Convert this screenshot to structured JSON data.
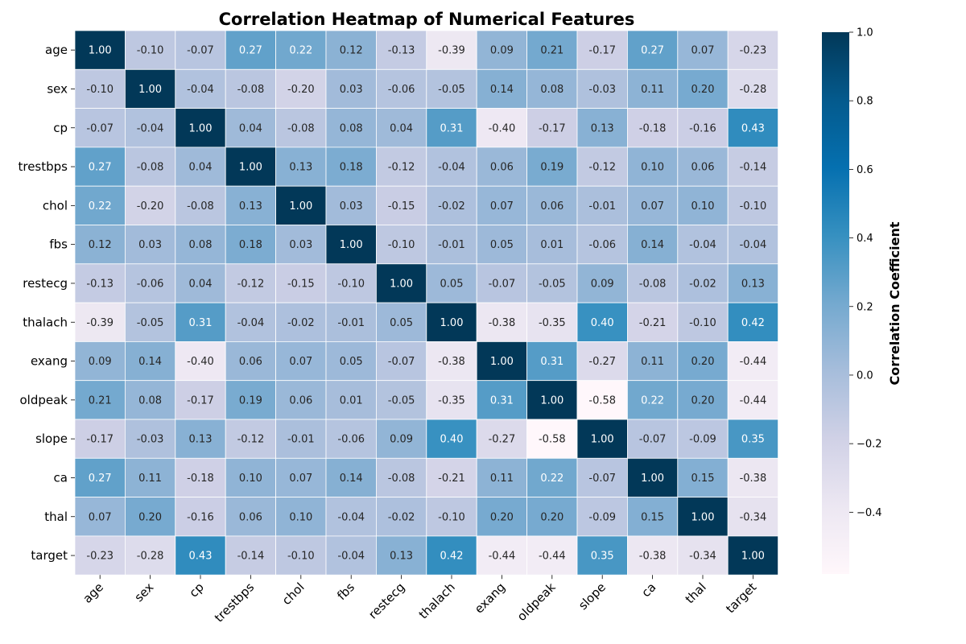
{
  "chart_data": {
    "type": "heatmap",
    "title": "Correlation Heatmap of Numerical Features",
    "row_labels": [
      "age",
      "sex",
      "cp",
      "trestbps",
      "chol",
      "fbs",
      "restecg",
      "thalach",
      "exang",
      "oldpeak",
      "slope",
      "ca",
      "thal",
      "target"
    ],
    "col_labels": [
      "age",
      "sex",
      "cp",
      "trestbps",
      "chol",
      "fbs",
      "restecg",
      "thalach",
      "exang",
      "oldpeak",
      "slope",
      "ca",
      "thal",
      "target"
    ],
    "values": [
      [
        1.0,
        -0.1,
        -0.07,
        0.27,
        0.22,
        0.12,
        -0.13,
        -0.39,
        0.09,
        0.21,
        -0.17,
        0.27,
        0.07,
        -0.23
      ],
      [
        -0.1,
        1.0,
        -0.04,
        -0.08,
        -0.2,
        0.03,
        -0.06,
        -0.05,
        0.14,
        0.08,
        -0.03,
        0.11,
        0.2,
        -0.28
      ],
      [
        -0.07,
        -0.04,
        1.0,
        0.04,
        -0.08,
        0.08,
        0.04,
        0.31,
        -0.4,
        -0.17,
        0.13,
        -0.18,
        -0.16,
        0.43
      ],
      [
        0.27,
        -0.08,
        0.04,
        1.0,
        0.13,
        0.18,
        -0.12,
        -0.04,
        0.06,
        0.19,
        -0.12,
        0.1,
        0.06,
        -0.14
      ],
      [
        0.22,
        -0.2,
        -0.08,
        0.13,
        1.0,
        0.03,
        -0.15,
        -0.02,
        0.07,
        0.06,
        -0.01,
        0.07,
        0.1,
        -0.1
      ],
      [
        0.12,
        0.03,
        0.08,
        0.18,
        0.03,
        1.0,
        -0.1,
        -0.01,
        0.05,
        0.01,
        -0.06,
        0.14,
        -0.04,
        -0.04
      ],
      [
        -0.13,
        -0.06,
        0.04,
        -0.12,
        -0.15,
        -0.1,
        1.0,
        0.05,
        -0.07,
        -0.05,
        0.09,
        -0.08,
        -0.02,
        0.13
      ],
      [
        -0.39,
        -0.05,
        0.31,
        -0.04,
        -0.02,
        -0.01,
        0.05,
        1.0,
        -0.38,
        -0.35,
        0.4,
        -0.21,
        -0.1,
        0.42
      ],
      [
        0.09,
        0.14,
        -0.4,
        0.06,
        0.07,
        0.05,
        -0.07,
        -0.38,
        1.0,
        0.31,
        -0.27,
        0.11,
        0.2,
        -0.44
      ],
      [
        0.21,
        0.08,
        -0.17,
        0.19,
        0.06,
        0.01,
        -0.05,
        -0.35,
        0.31,
        1.0,
        -0.58,
        0.22,
        0.2,
        -0.44
      ],
      [
        -0.17,
        -0.03,
        0.13,
        -0.12,
        -0.01,
        -0.06,
        0.09,
        0.4,
        -0.27,
        -0.58,
        1.0,
        -0.07,
        -0.09,
        0.35
      ],
      [
        0.27,
        0.11,
        -0.18,
        0.1,
        0.07,
        0.14,
        -0.08,
        -0.21,
        0.11,
        0.22,
        -0.07,
        1.0,
        0.15,
        -0.38
      ],
      [
        0.07,
        0.2,
        -0.16,
        0.06,
        0.1,
        -0.04,
        -0.02,
        -0.1,
        0.2,
        0.2,
        -0.09,
        0.15,
        1.0,
        -0.34
      ],
      [
        -0.23,
        -0.28,
        0.43,
        -0.14,
        -0.1,
        -0.04,
        0.13,
        0.42,
        -0.44,
        -0.44,
        0.35,
        -0.38,
        -0.34,
        1.0
      ]
    ],
    "value_format": "2 decimals",
    "colormap": "PuBu",
    "vmin": -0.58,
    "vmax": 1.0,
    "colorbar": {
      "label": "Correlation Coefficient",
      "ticks": [
        1.0,
        0.8,
        0.6,
        0.4,
        0.2,
        0.0,
        -0.2,
        -0.4
      ],
      "tick_labels": [
        "1.0",
        "0.8",
        "0.6",
        "0.4",
        "0.2",
        "0.0",
        "−0.2",
        "−0.4"
      ],
      "placement": "right"
    },
    "colors": {
      "low": "#fff7fb",
      "mid_low": "#d0d1e6",
      "mid": "#74a9cf",
      "mid_high": "#0570b0",
      "high": "#023858",
      "cell_border": "#ffffff"
    }
  }
}
